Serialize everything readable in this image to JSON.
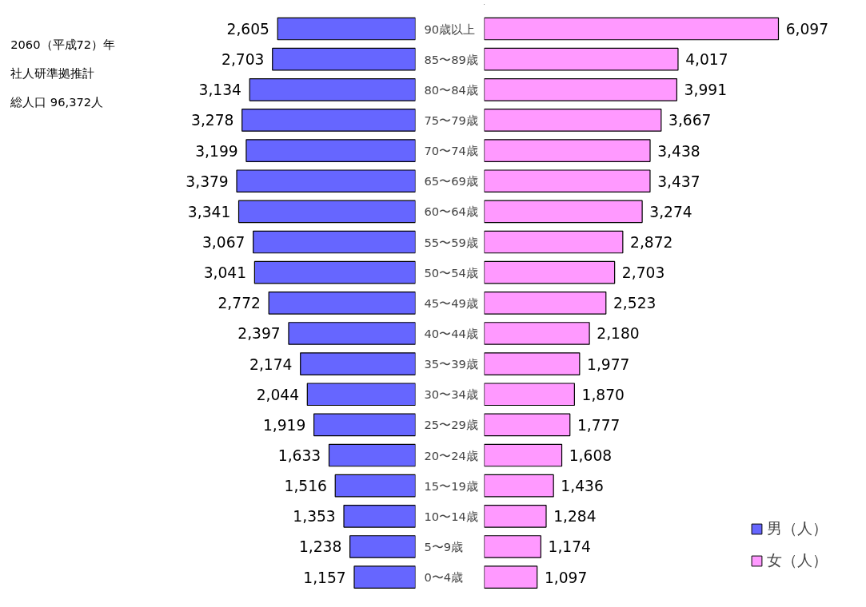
{
  "chart_data": [
    {
      "type": "bar",
      "orientation": "horizontal",
      "annotations": [
        "2060（平成72）年",
        "社人研準拠推計",
        "総人口 96,372人"
      ],
      "categories": [
        "90歳以上",
        "85〜89歳",
        "80〜84歳",
        "75〜79歳",
        "70〜74歳",
        "65〜69歳",
        "60〜64歳",
        "55〜59歳",
        "50〜54歳",
        "45〜49歳",
        "40〜44歳",
        "35〜39歳",
        "30〜34歳",
        "25〜29歳",
        "20〜24歳",
        "15〜19歳",
        "10〜14歳",
        "5〜9歳",
        "0〜4歳"
      ],
      "series": [
        {
          "name": "男（人）",
          "color": "#6666ff",
          "values": [
            2605,
            2703,
            3134,
            3278,
            3199,
            3379,
            3341,
            3067,
            3041,
            2772,
            2397,
            2174,
            2044,
            1919,
            1633,
            1516,
            1353,
            1238,
            1157
          ],
          "value_labels": [
            "2,605",
            "2,703",
            "3,134",
            "3,278",
            "3,199",
            "3,379",
            "3,341",
            "3,067",
            "3,041",
            "2,772",
            "2,397",
            "2,174",
            "2,044",
            "1,919",
            "1,633",
            "1,516",
            "1,353",
            "1,238",
            "1,157"
          ]
        }
      ]
    },
    {
      "type": "bar",
      "orientation": "horizontal",
      "legend": "bottom right",
      "categories": [
        null,
        null,
        null,
        null,
        null,
        null,
        null,
        null,
        null,
        null,
        null,
        null,
        null,
        null,
        null,
        null,
        null,
        null,
        null
      ],
      "series": [
        {
          "name": "女（人）",
          "color": "#ff99ff",
          "values": [
            6097,
            4017,
            3991,
            3667,
            3438,
            3437,
            3274,
            2872,
            2703,
            2523,
            2180,
            1977,
            1870,
            1777,
            1608,
            1436,
            1284,
            1174,
            1097
          ],
          "value_labels": [
            "6,097",
            "4,017",
            "3,991",
            "3,667",
            "3,438",
            "3,437",
            "3,274",
            "2,872",
            "2,703",
            "2,523",
            "2,180",
            "1,977",
            "1,870",
            "1,777",
            "1,608",
            "1,436",
            "1,284",
            "1,174",
            "1,097"
          ]
        }
      ]
    }
  ]
}
